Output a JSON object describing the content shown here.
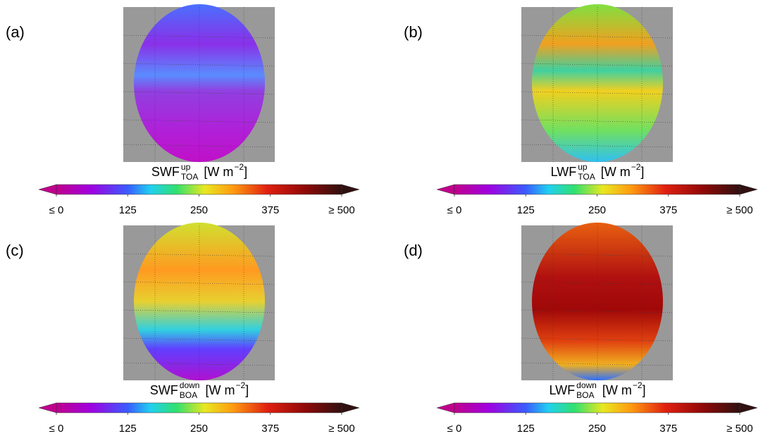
{
  "panels": [
    {
      "label": "(a)",
      "quantity": "SWF",
      "superscript": "up",
      "subscript": "TOA",
      "unit": "[W m",
      "unit_exponent": "−2",
      "unit_close": "]",
      "colorbar": {
        "range": [
          0,
          500
        ],
        "ticks": [
          {
            "value": 0,
            "label": "≤ 0"
          },
          125,
          250,
          375,
          {
            "value": 500,
            "label": "≥ 500"
          }
        ]
      }
    },
    {
      "label": "(b)",
      "quantity": "LWF",
      "superscript": "up",
      "subscript": "TOA",
      "unit": "[W m",
      "unit_exponent": "−2",
      "unit_close": "]",
      "colorbar": {
        "range": [
          0,
          500
        ],
        "ticks": [
          {
            "value": 0,
            "label": "≤ 0"
          },
          125,
          250,
          375,
          {
            "value": 500,
            "label": "≥ 500"
          }
        ]
      }
    },
    {
      "label": "(c)",
      "quantity": "SWF",
      "superscript": "down",
      "subscript": "BOA",
      "unit": "[W m",
      "unit_exponent": "−2",
      "unit_close": "]",
      "colorbar": {
        "range": [
          0,
          500
        ],
        "ticks": [
          {
            "value": 0,
            "label": "≤ 0"
          },
          125,
          250,
          375,
          {
            "value": 500,
            "label": "≥ 500"
          }
        ]
      }
    },
    {
      "label": "(d)",
      "quantity": "LWF",
      "superscript": "down",
      "subscript": "BOA",
      "unit": "[W m",
      "unit_exponent": "−2",
      "unit_close": "]",
      "colorbar": {
        "range": [
          0,
          500
        ],
        "ticks": [
          {
            "value": 0,
            "label": "≤ 0"
          },
          125,
          250,
          375,
          {
            "value": 500,
            "label": "≥ 500"
          }
        ]
      }
    }
  ]
}
